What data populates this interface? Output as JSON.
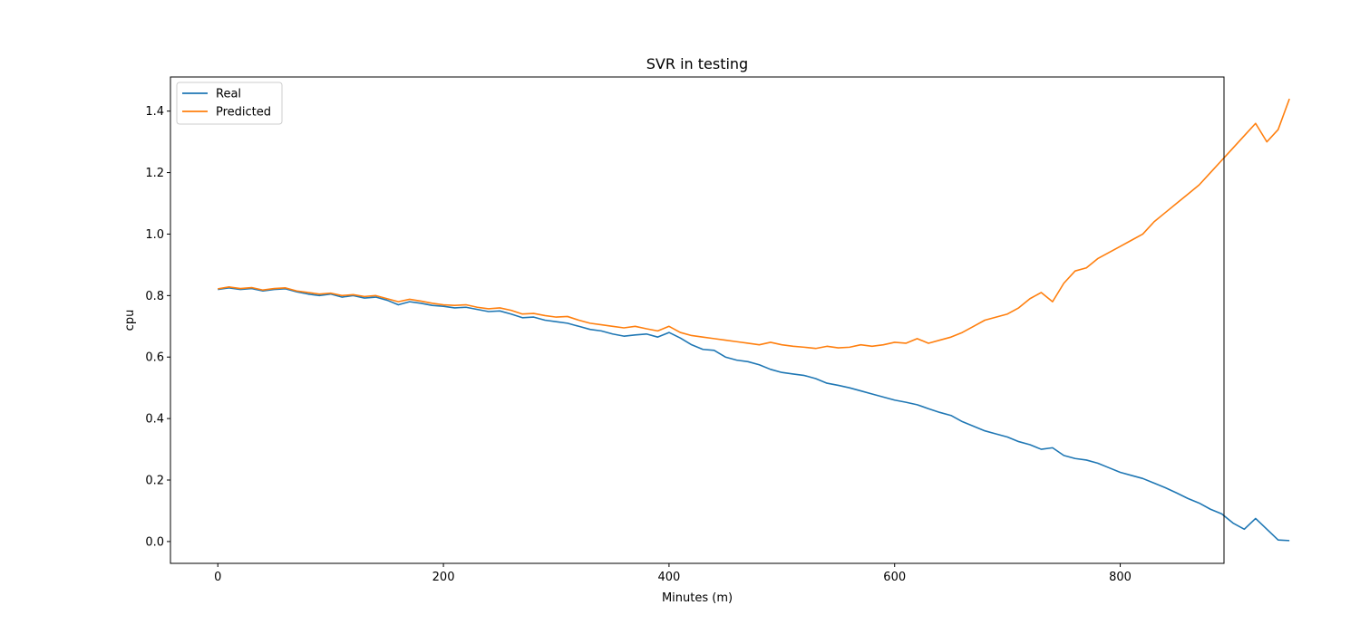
{
  "chart_data": {
    "type": "line",
    "title": "SVR in testing",
    "xlabel": "Minutes (m)",
    "ylabel": "cpu",
    "xlim": [
      -42,
      892
    ],
    "ylim": [
      -0.071,
      1.511
    ],
    "xticks": [
      0,
      200,
      400,
      600,
      800
    ],
    "yticks": [
      0.0,
      0.2,
      0.4,
      0.6,
      0.8,
      1.0,
      1.2,
      1.4
    ],
    "xtick_labels": [
      "0",
      "200",
      "400",
      "600",
      "800"
    ],
    "ytick_labels": [
      "0.0",
      "0.2",
      "0.4",
      "0.6",
      "0.8",
      "1.0",
      "1.2",
      "1.4"
    ],
    "grid": false,
    "legend_position": "upper-left",
    "x_step": 10,
    "series": [
      {
        "name": "Real",
        "color": "#1f77b4",
        "values": [
          0.82,
          0.825,
          0.82,
          0.823,
          0.815,
          0.82,
          0.822,
          0.812,
          0.805,
          0.8,
          0.805,
          0.795,
          0.8,
          0.792,
          0.795,
          0.785,
          0.77,
          0.78,
          0.775,
          0.768,
          0.765,
          0.76,
          0.762,
          0.755,
          0.748,
          0.75,
          0.74,
          0.728,
          0.73,
          0.72,
          0.715,
          0.71,
          0.7,
          0.69,
          0.685,
          0.675,
          0.668,
          0.672,
          0.675,
          0.665,
          0.68,
          0.662,
          0.64,
          0.625,
          0.622,
          0.6,
          0.59,
          0.585,
          0.575,
          0.56,
          0.55,
          0.545,
          0.54,
          0.53,
          0.515,
          0.508,
          0.5,
          0.49,
          0.48,
          0.47,
          0.46,
          0.453,
          0.445,
          0.432,
          0.42,
          0.41,
          0.39,
          0.375,
          0.36,
          0.35,
          0.34,
          0.325,
          0.315,
          0.3,
          0.305,
          0.28,
          0.27,
          0.265,
          0.255,
          0.24,
          0.225,
          0.215,
          0.205,
          0.19,
          0.175,
          0.158,
          0.14,
          0.125,
          0.105,
          0.09,
          0.06,
          0.04,
          0.075,
          0.04,
          0.005,
          0.003
        ]
      },
      {
        "name": "Predicted",
        "color": "#ff7f0e",
        "values": [
          0.822,
          0.828,
          0.823,
          0.826,
          0.818,
          0.823,
          0.825,
          0.815,
          0.81,
          0.805,
          0.808,
          0.8,
          0.803,
          0.797,
          0.8,
          0.79,
          0.78,
          0.788,
          0.782,
          0.775,
          0.77,
          0.768,
          0.77,
          0.762,
          0.757,
          0.76,
          0.752,
          0.74,
          0.742,
          0.735,
          0.73,
          0.732,
          0.72,
          0.71,
          0.705,
          0.7,
          0.695,
          0.7,
          0.692,
          0.685,
          0.7,
          0.68,
          0.67,
          0.665,
          0.66,
          0.655,
          0.65,
          0.645,
          0.64,
          0.648,
          0.64,
          0.635,
          0.632,
          0.628,
          0.635,
          0.63,
          0.632,
          0.64,
          0.635,
          0.64,
          0.648,
          0.645,
          0.66,
          0.645,
          0.655,
          0.665,
          0.68,
          0.7,
          0.72,
          0.73,
          0.74,
          0.76,
          0.79,
          0.81,
          0.78,
          0.84,
          0.88,
          0.89,
          0.92,
          0.94,
          0.96,
          0.98,
          1.0,
          1.04,
          1.07,
          1.1,
          1.13,
          1.16,
          1.2,
          1.24,
          1.28,
          1.32,
          1.36,
          1.3,
          1.34,
          1.44
        ]
      }
    ]
  }
}
